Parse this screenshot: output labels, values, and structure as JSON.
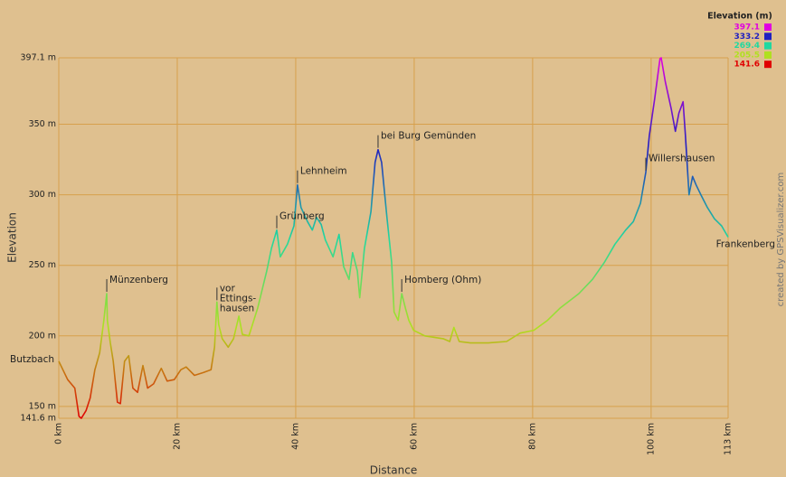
{
  "chart_data": {
    "type": "line",
    "x_label": "Distance",
    "y_label": "Elevation",
    "credit": "created by GPSVisualizer.com",
    "xlim": [
      0,
      113
    ],
    "ylim": [
      141.6,
      397.1
    ],
    "xticks": [
      {
        "value": 0,
        "label": "0 km"
      },
      {
        "value": 20,
        "label": "20 km"
      },
      {
        "value": 40,
        "label": "40 km"
      },
      {
        "value": 60,
        "label": "60 km"
      },
      {
        "value": 80,
        "label": "80 km"
      },
      {
        "value": 100,
        "label": "100 km"
      },
      {
        "value": 113,
        "label": "113 km"
      }
    ],
    "yticks": [
      {
        "value": 141.6,
        "label": "141.6 m"
      },
      {
        "value": 150,
        "label": "150 m"
      },
      {
        "value": 200,
        "label": "200 m"
      },
      {
        "value": 250,
        "label": "250 m"
      },
      {
        "value": 300,
        "label": "300 m"
      },
      {
        "value": 350,
        "label": "350 m"
      },
      {
        "value": 397.1,
        "label": "397.1 m"
      }
    ],
    "grid": true,
    "legend": {
      "title": "Elevation (m)",
      "position": "top-right",
      "entries": [
        {
          "value": 397.1,
          "color": "#e000e0"
        },
        {
          "value": 333.2,
          "color": "#2020c0"
        },
        {
          "value": 269.4,
          "color": "#20d8a0"
        },
        {
          "value": 205.5,
          "color": "#b0e020"
        },
        {
          "value": 141.6,
          "color": "#e00000"
        }
      ]
    },
    "x": [
      0,
      1.5,
      2.7,
      3.4,
      3.8,
      4.6,
      5.3,
      6.1,
      6.9,
      7.6,
      8.1,
      8.2,
      8.7,
      9.2,
      9.9,
      10.4,
      11.1,
      11.8,
      12.5,
      13.3,
      14.2,
      15.0,
      16.0,
      17.3,
      18.3,
      19.5,
      20.6,
      21.5,
      22.9,
      24.4,
      25.7,
      26.3,
      26.7,
      27.0,
      27.6,
      28.6,
      29.5,
      30.4,
      31.0,
      32.1,
      33.6,
      35.1,
      35.9,
      36.8,
      37.4,
      38.6,
      39.7,
      40.3,
      40.9,
      42.0,
      42.8,
      43.5,
      44.3,
      45.0,
      46.3,
      47.3,
      48.1,
      49.0,
      49.6,
      50.4,
      50.8,
      51.6,
      52.7,
      53.4,
      53.9,
      54.5,
      55.4,
      56.2,
      56.6,
      57.3,
      57.9,
      58.5,
      59.1,
      59.9,
      61.8,
      64.9,
      66.0,
      66.7,
      67.6,
      69.5,
      72.5,
      75.6,
      77.9,
      80.2,
      82.5,
      84.7,
      87.8,
      90.1,
      92.1,
      93.9,
      95.7,
      97.0,
      98.2,
      99.1,
      99.7,
      100.6,
      101.5,
      101.7,
      102.4,
      103.4,
      104.1,
      104.7,
      105.4,
      105.8,
      106.4,
      107.0,
      107.6,
      108.4,
      109.5,
      110.7,
      111.9,
      113
    ],
    "values": [
      182,
      169,
      163,
      143,
      141.6,
      147,
      156,
      176,
      188,
      211,
      230,
      211,
      195,
      182,
      153,
      152,
      182,
      186,
      163,
      160,
      179,
      163,
      166,
      177,
      168,
      169,
      176,
      178,
      172,
      174,
      176,
      192,
      224,
      208,
      198,
      192,
      198,
      214,
      201,
      200,
      220,
      246,
      262,
      275,
      256,
      265,
      278,
      307,
      291,
      281,
      275,
      284,
      279,
      268,
      256,
      272,
      249,
      240,
      259,
      246,
      227,
      262,
      288,
      323,
      332,
      323,
      284,
      252,
      217,
      211,
      230,
      220,
      211,
      204,
      200,
      198,
      196,
      206,
      196,
      195,
      195,
      196,
      202,
      204,
      211,
      220,
      230,
      240,
      252,
      265,
      275,
      281,
      294,
      316,
      342,
      368,
      396.5,
      397.1,
      380,
      361,
      345,
      358,
      366,
      342,
      300,
      313,
      307,
      300,
      291,
      283,
      278,
      270
    ],
    "annotations": [
      {
        "lines": [
          "Butzbach"
        ],
        "x": 0,
        "y": 182
      },
      {
        "lines": [
          "Münzenberg"
        ],
        "x": 8.1,
        "y": 230
      },
      {
        "lines": [
          "vor",
          "Ettings-",
          "hausen"
        ],
        "x": 26.7,
        "y": 224
      },
      {
        "lines": [
          "Grünberg"
        ],
        "x": 36.8,
        "y": 275
      },
      {
        "lines": [
          "Lehnheim"
        ],
        "x": 40.3,
        "y": 307
      },
      {
        "lines": [
          "bei Burg Gemünden"
        ],
        "x": 53.9,
        "y": 332
      },
      {
        "lines": [
          "Homberg (Ohm)"
        ],
        "x": 57.9,
        "y": 230
      },
      {
        "lines": [
          "Willershausen"
        ],
        "x": 99.1,
        "y": 316
      },
      {
        "lines": [
          "Frankenberg"
        ],
        "x": 113,
        "y": 270
      }
    ]
  }
}
